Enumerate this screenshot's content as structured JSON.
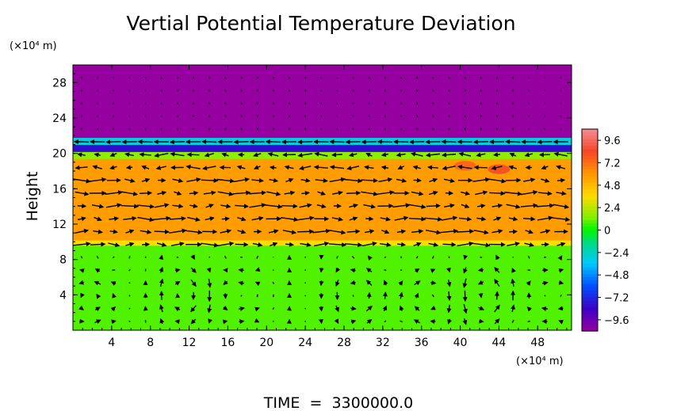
{
  "chart_data": {
    "type": "heatmap",
    "title": "Vertial Potential Temperature Deviation",
    "ylabel": "Height",
    "y_unit": "(×10⁴ m)",
    "x_unit": "(×10⁴ m)",
    "footer": "TIME  =  3300000.0",
    "xlim": [
      0,
      51.5
    ],
    "ylim": [
      0,
      30
    ],
    "x_ticks": [
      4,
      8,
      12,
      16,
      20,
      24,
      28,
      32,
      36,
      40,
      44,
      48
    ],
    "y_ticks": [
      4,
      8,
      12,
      16,
      20,
      24,
      28
    ],
    "colorbar": {
      "range": [
        -10.8,
        10.8
      ],
      "tick_values": [
        9.6,
        7.2,
        4.8,
        2.4,
        0,
        -2.4,
        -4.8,
        -7.2,
        -9.6
      ],
      "tick_labels": [
        "9.6",
        "7.2",
        "4.8",
        "2.4",
        "0",
        "−2.4",
        "−4.8",
        "−7.2",
        "−9.6"
      ]
    },
    "layers": [
      {
        "y_range": [
          0,
          9.6
        ],
        "value": 0.8
      },
      {
        "y_range": [
          9.6,
          10.2
        ],
        "value": 3.6
      },
      {
        "y_range": [
          10.2,
          19.4
        ],
        "value": 5.8
      },
      {
        "y_range": [
          19.4,
          20.2
        ],
        "value": 1.6
      },
      {
        "y_range": [
          20.2,
          21.0
        ],
        "value": -8.0
      },
      {
        "y_range": [
          21.0,
          21.8
        ],
        "value": -3.0
      },
      {
        "y_range": [
          21.8,
          30
        ],
        "value": -10.8
      }
    ],
    "hotspots": [
      {
        "x": 40.5,
        "y": 18.6,
        "value": 7.6
      },
      {
        "x": 44.0,
        "y": 18.2,
        "value": 8.4
      }
    ],
    "vectors": {
      "note": "wind vector field (u, w) shown as arrows",
      "convection_cells": [
        {
          "x": 2.5,
          "y": 3.5,
          "sense": 1
        },
        {
          "x": 12,
          "y": 4,
          "sense": -1
        },
        {
          "x": 17,
          "y": 4,
          "sense": 1
        },
        {
          "x": 30,
          "y": 4,
          "sense": 1
        },
        {
          "x": 36,
          "y": 3.5,
          "sense": -1
        },
        {
          "x": 43,
          "y": 4,
          "sense": 1
        },
        {
          "x": 49,
          "y": 4,
          "sense": -1
        }
      ]
    }
  }
}
